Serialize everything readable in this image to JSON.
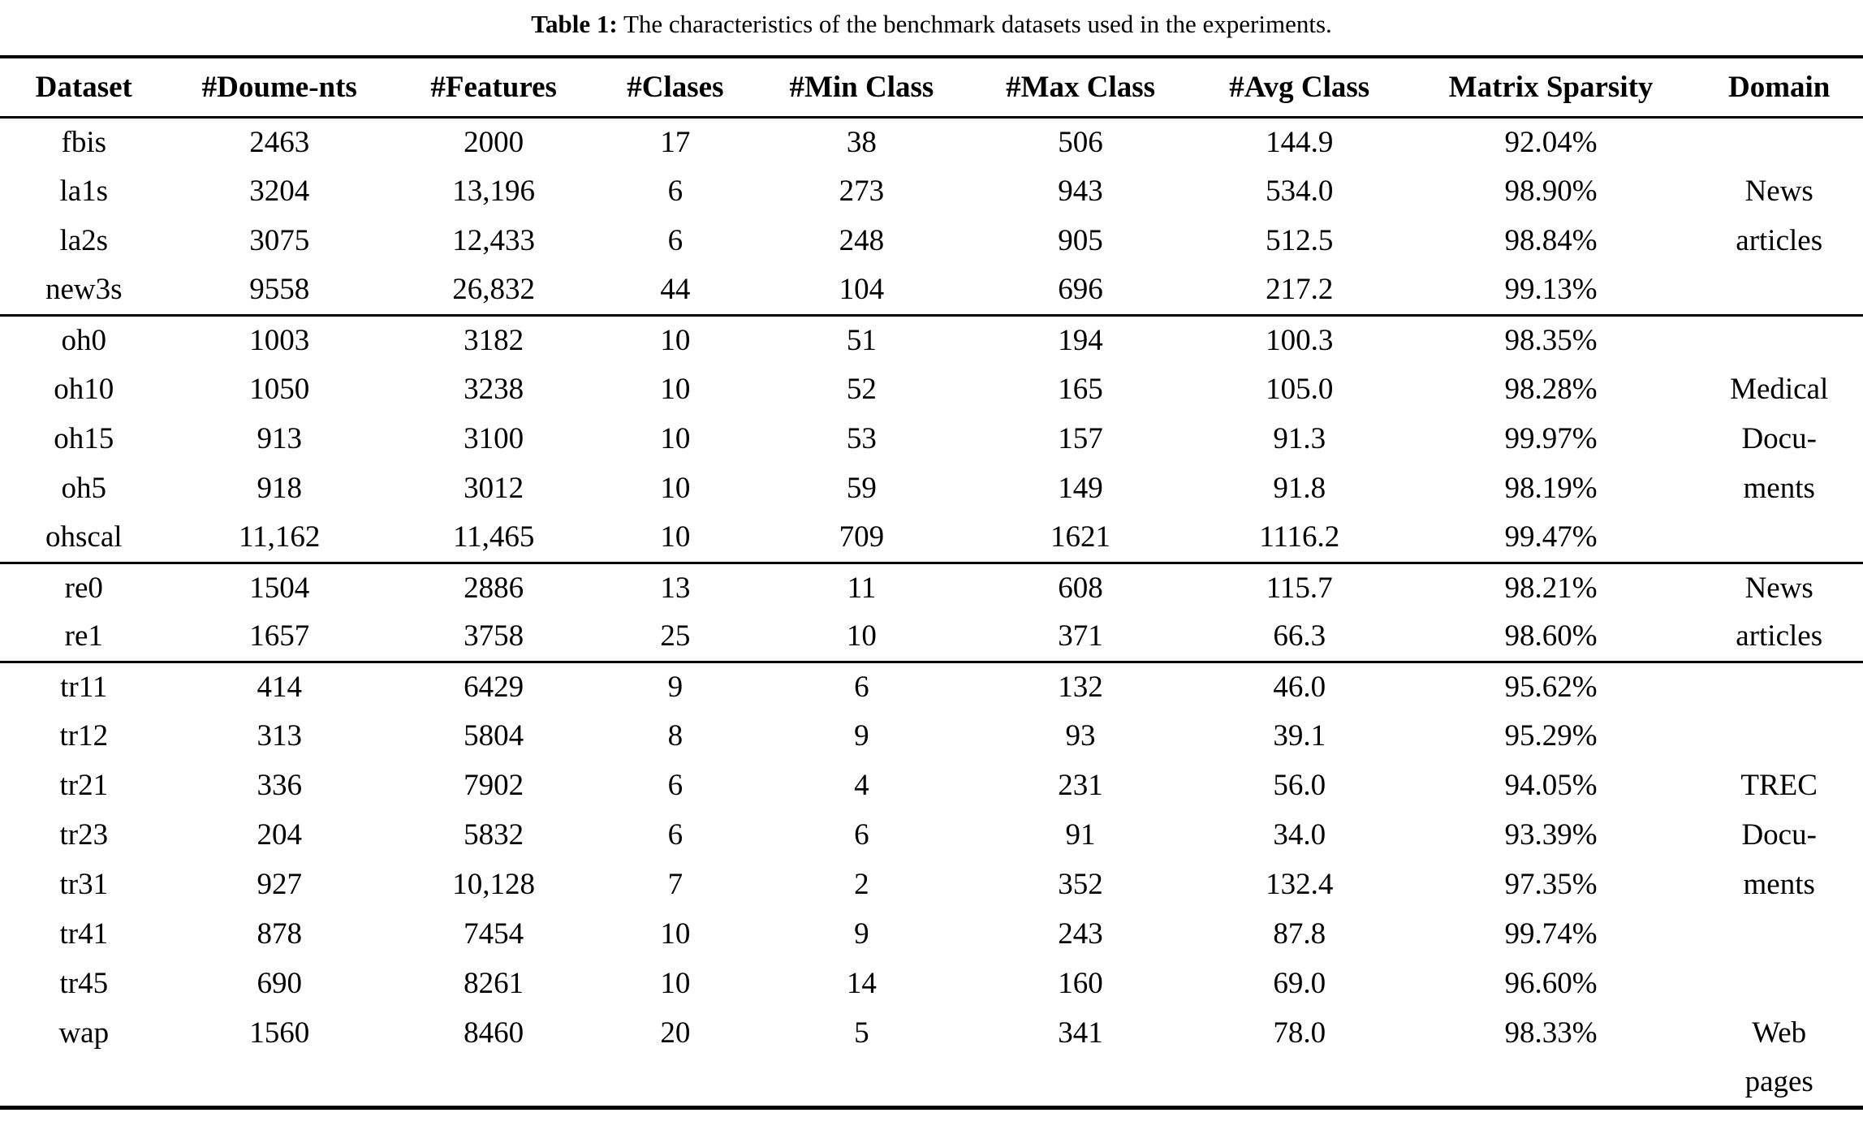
{
  "caption": {
    "label": "Table 1:",
    "text": "The characteristics of the benchmark datasets used in the experiments."
  },
  "colors": {
    "text": "#000000",
    "background": "#ffffff",
    "rule": "#000000"
  },
  "table": {
    "columns": [
      "Dataset",
      "#Doume-nts",
      "#Features",
      "#Clases",
      "#Min Class",
      "#Max Class",
      "#Avg Class",
      "Matrix Sparsity",
      "Domain"
    ],
    "groups": [
      {
        "rows": [
          [
            "fbis",
            "2463",
            "2000",
            "17",
            "38",
            "506",
            "144.9",
            "92.04%",
            ""
          ],
          [
            "la1s",
            "3204",
            "13,196",
            "6",
            "273",
            "943",
            "534.0",
            "98.90%",
            "News"
          ],
          [
            "la2s",
            "3075",
            "12,433",
            "6",
            "248",
            "905",
            "512.5",
            "98.84%",
            "articles"
          ],
          [
            "new3s",
            "9558",
            "26,832",
            "44",
            "104",
            "696",
            "217.2",
            "99.13%",
            ""
          ]
        ]
      },
      {
        "rows": [
          [
            "oh0",
            "1003",
            "3182",
            "10",
            "51",
            "194",
            "100.3",
            "98.35%",
            ""
          ],
          [
            "oh10",
            "1050",
            "3238",
            "10",
            "52",
            "165",
            "105.0",
            "98.28%",
            "Medical"
          ],
          [
            "oh15",
            "913",
            "3100",
            "10",
            "53",
            "157",
            "91.3",
            "99.97%",
            "Docu-"
          ],
          [
            "oh5",
            "918",
            "3012",
            "10",
            "59",
            "149",
            "91.8",
            "98.19%",
            "ments"
          ],
          [
            "ohscal",
            "11,162",
            "11,465",
            "10",
            "709",
            "1621",
            "1116.2",
            "99.47%",
            ""
          ]
        ]
      },
      {
        "rows": [
          [
            "re0",
            "1504",
            "2886",
            "13",
            "11",
            "608",
            "115.7",
            "98.21%",
            "News"
          ],
          [
            "re1",
            "1657",
            "3758",
            "25",
            "10",
            "371",
            "66.3",
            "98.60%",
            "articles"
          ]
        ]
      },
      {
        "rows": [
          [
            "tr11",
            "414",
            "6429",
            "9",
            "6",
            "132",
            "46.0",
            "95.62%",
            ""
          ],
          [
            "tr12",
            "313",
            "5804",
            "8",
            "9",
            "93",
            "39.1",
            "95.29%",
            ""
          ],
          [
            "tr21",
            "336",
            "7902",
            "6",
            "4",
            "231",
            "56.0",
            "94.05%",
            "TREC"
          ],
          [
            "tr23",
            "204",
            "5832",
            "6",
            "6",
            "91",
            "34.0",
            "93.39%",
            "Docu-"
          ],
          [
            "tr31",
            "927",
            "10,128",
            "7",
            "2",
            "352",
            "132.4",
            "97.35%",
            "ments"
          ],
          [
            "tr41",
            "878",
            "7454",
            "10",
            "9",
            "243",
            "87.8",
            "99.74%",
            ""
          ],
          [
            "tr45",
            "690",
            "8261",
            "10",
            "14",
            "160",
            "69.0",
            "96.60%",
            ""
          ],
          [
            "wap",
            "1560",
            "8460",
            "20",
            "5",
            "341",
            "78.0",
            "98.33%",
            "Web"
          ],
          [
            "",
            "",
            "",
            "",
            "",
            "",
            "",
            "",
            "pages"
          ]
        ]
      }
    ]
  }
}
